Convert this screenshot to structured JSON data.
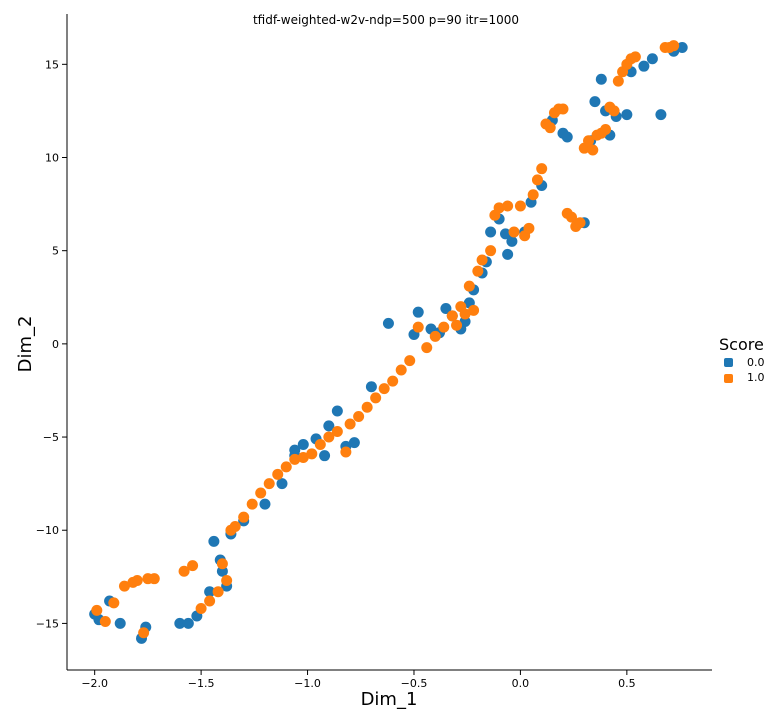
{
  "chart_data": {
    "type": "scatter",
    "title": "tfidf-weighted-w2v-ndp=500 p=90 itr=1000",
    "xlabel": "Dim_1",
    "ylabel": "Dim_2",
    "xlim": [
      -2.13,
      0.9
    ],
    "ylim": [
      -17.5,
      17.7
    ],
    "xticks": [
      -2.0,
      -1.5,
      -1.0,
      -0.5,
      0.0,
      0.5
    ],
    "xtick_labels": [
      "−2.0",
      "−1.5",
      "−1.0",
      "−0.5",
      "0.0",
      "0.5"
    ],
    "yticks": [
      -15,
      -10,
      -5,
      0,
      5,
      10,
      15
    ],
    "ytick_labels": [
      "−15",
      "−10",
      "−5",
      "0",
      "5",
      "10",
      "15"
    ],
    "grid": false,
    "legend": {
      "title": "Score",
      "placement": "right"
    },
    "series": [
      {
        "name": "0.0",
        "color": "#1f77b4",
        "x": [
          -2.0,
          -1.98,
          -1.93,
          -1.88,
          -1.78,
          -1.76,
          -1.6,
          -1.56,
          -1.52,
          -1.46,
          -1.4,
          -1.38,
          -1.44,
          -1.41,
          -1.36,
          -1.3,
          -1.2,
          -1.12,
          -1.06,
          -1.06,
          -1.02,
          -0.96,
          -0.92,
          -0.9,
          -0.86,
          -0.82,
          -0.78,
          -0.7,
          -0.62,
          -0.5,
          -0.48,
          -0.42,
          -0.38,
          -0.35,
          -0.32,
          -0.28,
          -0.26,
          -0.24,
          -0.22,
          -0.18,
          -0.16,
          -0.14,
          -0.1,
          -0.07,
          -0.06,
          -0.04,
          0.02,
          0.05,
          0.1,
          0.15,
          0.2,
          0.22,
          0.3,
          0.33,
          0.35,
          0.38,
          0.4,
          0.42,
          0.45,
          0.5,
          0.52,
          0.58,
          0.62,
          0.66,
          0.72,
          0.76
        ],
        "y": [
          -14.5,
          -14.8,
          -13.8,
          -15.0,
          -15.8,
          -15.2,
          -15.0,
          -15.0,
          -14.6,
          -13.3,
          -12.2,
          -13.0,
          -10.6,
          -11.6,
          -10.2,
          -9.5,
          -8.6,
          -7.5,
          -5.7,
          -6.0,
          -5.4,
          -5.1,
          -6.0,
          -4.4,
          -3.6,
          -5.5,
          -5.3,
          -2.3,
          1.1,
          0.5,
          1.7,
          0.8,
          0.6,
          1.9,
          1.5,
          0.8,
          1.2,
          2.2,
          2.9,
          3.8,
          4.4,
          6.0,
          6.7,
          5.9,
          4.8,
          5.5,
          6.0,
          7.6,
          8.5,
          12.0,
          11.3,
          11.1,
          6.5,
          10.9,
          13.0,
          14.2,
          12.5,
          11.2,
          12.2,
          12.3,
          14.6,
          14.9,
          15.3,
          12.3,
          15.7,
          15.9
        ],
        "size": 5.5
      },
      {
        "name": "1.0",
        "color": "#ff7f0e",
        "x": [
          -1.99,
          -1.95,
          -1.91,
          -1.86,
          -1.82,
          -1.8,
          -1.77,
          -1.75,
          -1.72,
          -1.58,
          -1.54,
          -1.5,
          -1.46,
          -1.42,
          -1.4,
          -1.38,
          -1.36,
          -1.34,
          -1.3,
          -1.26,
          -1.22,
          -1.18,
          -1.14,
          -1.1,
          -1.06,
          -1.02,
          -0.98,
          -0.94,
          -0.9,
          -0.86,
          -0.82,
          -0.8,
          -0.76,
          -0.72,
          -0.68,
          -0.64,
          -0.6,
          -0.56,
          -0.52,
          -0.48,
          -0.44,
          -0.4,
          -0.36,
          -0.32,
          -0.3,
          -0.28,
          -0.26,
          -0.24,
          -0.22,
          -0.2,
          -0.18,
          -0.14,
          -0.12,
          -0.1,
          -0.06,
          -0.03,
          0.0,
          0.02,
          0.04,
          0.06,
          0.08,
          0.1,
          0.12,
          0.14,
          0.16,
          0.18,
          0.2,
          0.22,
          0.24,
          0.26,
          0.28,
          0.3,
          0.32,
          0.34,
          0.36,
          0.38,
          0.4,
          0.42,
          0.44,
          0.46,
          0.48,
          0.5,
          0.52,
          0.54,
          0.68,
          0.7,
          0.72
        ],
        "y": [
          -14.3,
          -14.9,
          -13.9,
          -13.0,
          -12.8,
          -12.7,
          -15.5,
          -12.6,
          -12.6,
          -12.2,
          -11.9,
          -14.2,
          -13.8,
          -13.3,
          -11.8,
          -12.7,
          -10.0,
          -9.8,
          -9.3,
          -8.6,
          -8.0,
          -7.5,
          -7.0,
          -6.6,
          -6.2,
          -6.1,
          -5.9,
          -5.4,
          -5.0,
          -4.7,
          -5.8,
          -4.3,
          -3.9,
          -3.4,
          -2.9,
          -2.4,
          -2.0,
          -1.4,
          -0.9,
          0.9,
          -0.2,
          0.4,
          0.9,
          1.5,
          1.0,
          2.0,
          1.6,
          3.1,
          1.8,
          3.9,
          4.5,
          5.0,
          6.9,
          7.3,
          7.4,
          6.0,
          7.4,
          5.8,
          6.2,
          8.0,
          8.8,
          9.4,
          11.8,
          11.6,
          12.4,
          12.6,
          12.6,
          7.0,
          6.8,
          6.3,
          6.5,
          10.5,
          10.9,
          10.4,
          11.2,
          11.3,
          11.5,
          12.7,
          12.5,
          14.1,
          14.6,
          15.0,
          15.3,
          15.4,
          15.9,
          15.9,
          16.0
        ],
        "size": 5.5
      }
    ]
  }
}
